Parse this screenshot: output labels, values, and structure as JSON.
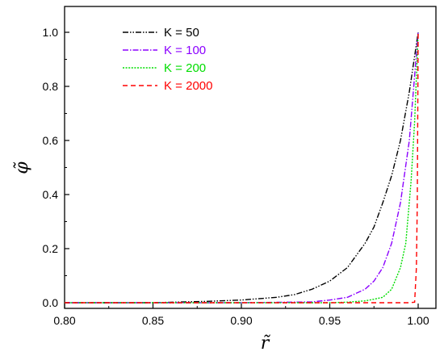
{
  "chart_data": {
    "type": "line",
    "xlabel": "r̃",
    "ylabel": "φ̃",
    "xlim": [
      0.8,
      1.0
    ],
    "ylim": [
      0.0,
      1.0
    ],
    "x_ticks": [
      "0.80",
      "0.85",
      "0.90",
      "0.95",
      "1.00"
    ],
    "y_ticks": [
      "0.0",
      "0.2",
      "0.4",
      "0.6",
      "0.8",
      "1.0"
    ],
    "grid": false,
    "legend_position": "top-left",
    "series": [
      {
        "name": "K = 50",
        "color": "#000000",
        "dash": "dash-dot-dot",
        "x": [
          0.8,
          0.85,
          0.88,
          0.9,
          0.92,
          0.93,
          0.94,
          0.95,
          0.96,
          0.97,
          0.975,
          0.98,
          0.985,
          0.99,
          0.995,
          1.0
        ],
        "y": [
          0.0,
          0.0,
          0.005,
          0.01,
          0.02,
          0.03,
          0.05,
          0.08,
          0.13,
          0.22,
          0.28,
          0.37,
          0.47,
          0.6,
          0.78,
          1.0
        ]
      },
      {
        "name": "K = 100",
        "color": "#8b00ff",
        "dash": "dash-dot",
        "x": [
          0.8,
          0.9,
          0.94,
          0.95,
          0.96,
          0.97,
          0.975,
          0.98,
          0.985,
          0.99,
          0.995,
          1.0
        ],
        "y": [
          0.0,
          0.0,
          0.003,
          0.01,
          0.02,
          0.05,
          0.08,
          0.13,
          0.22,
          0.37,
          0.6,
          1.0
        ]
      },
      {
        "name": "K = 200",
        "color": "#00dd00",
        "dash": "dotted",
        "x": [
          0.8,
          0.95,
          0.96,
          0.97,
          0.975,
          0.98,
          0.985,
          0.99,
          0.993,
          0.996,
          0.998,
          1.0
        ],
        "y": [
          0.0,
          0.0,
          0.002,
          0.007,
          0.013,
          0.02,
          0.05,
          0.13,
          0.22,
          0.45,
          0.67,
          1.0
        ]
      },
      {
        "name": "K = 2000",
        "color": "#ff0000",
        "dash": "dashed",
        "x": [
          0.8,
          0.995,
          0.998,
          0.999,
          0.9995,
          1.0
        ],
        "y": [
          0.0,
          0.0,
          0.002,
          0.13,
          0.37,
          1.0
        ]
      }
    ]
  }
}
